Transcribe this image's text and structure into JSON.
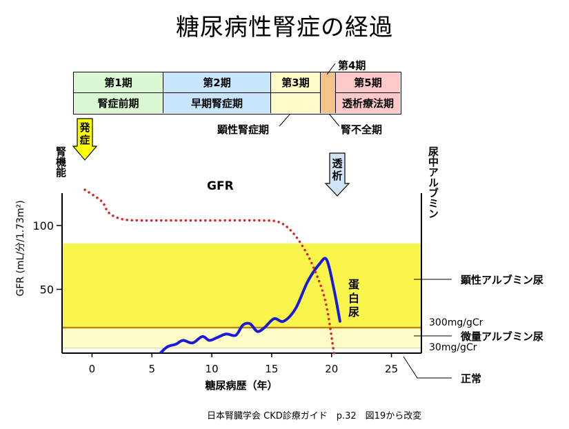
{
  "title": "糖尿病性腎症の経過",
  "stages": {
    "row1": [
      "第1期",
      "第2期",
      "第3期",
      "",
      "第5期"
    ],
    "row2": [
      "腎症前期",
      "早期腎症期",
      "",
      "",
      "透析療法期"
    ],
    "callout_stage4": "第4期",
    "callout_stage3_name": "顕性腎症期",
    "callout_stage4_name": "腎不全期",
    "colors": [
      "#d9f7d0",
      "#c8e6fb",
      "#fffbc8",
      "#f7c28a",
      "#ffc9c9"
    ]
  },
  "markers": {
    "onset": "発症",
    "dialysis": "透析"
  },
  "axis_labels": {
    "left_top": "腎機能",
    "left_gfr": "GFR (mL/分/1.73m²)",
    "right_top": "尿中アルブミン",
    "x_axis": "糖尿病歴（年）"
  },
  "curve_labels": {
    "gfr": "GFR",
    "protein": "蛋白尿"
  },
  "right_annotations": {
    "overt": "顕性アルブミン尿",
    "t300": "300mg/gCr",
    "micro": "微量アルブミン尿",
    "t30": "30mg/gCr",
    "normal": "正常"
  },
  "source": "日本腎臓学会 CKD診療ガイド　p.32　図19から改変",
  "chart_data": {
    "type": "line",
    "x_ticks": [
      0,
      5,
      10,
      15,
      20,
      25
    ],
    "y_ticks": [
      50,
      100
    ],
    "xlim": [
      -2.5,
      27.5
    ],
    "ylim": [
      0,
      120
    ],
    "bands": [
      {
        "name": "顕性アルブミン尿",
        "from": 20,
        "to": 86,
        "color": "#faf54d"
      },
      {
        "name": "微量アルブミン尿",
        "from": 4,
        "to": 20,
        "color": "#fdfbc6"
      }
    ],
    "series": [
      {
        "name": "GFR",
        "style": "dotted",
        "color": "#e02020",
        "x": [
          -0.6,
          0.8,
          1.4,
          2.5,
          4,
          6,
          10,
          14,
          15.5,
          16.5,
          17.5,
          18.5,
          19.5,
          20.2
        ],
        "y": [
          128,
          119,
          110,
          105,
          104,
          104,
          104,
          104,
          103,
          97,
          85,
          67,
          40,
          0
        ]
      },
      {
        "name": "蛋白尿",
        "style": "solid",
        "color": "#1a1ad8",
        "x": [
          5.7,
          6.3,
          7.0,
          7.6,
          8.4,
          9.2,
          9.8,
          10.4,
          11.2,
          12.0,
          12.6,
          13.2,
          13.8,
          14.4,
          15.2,
          16.0,
          17.0,
          18.0,
          19.0,
          19.6,
          20.2,
          20.7
        ],
        "y": [
          0,
          5,
          7,
          10,
          8,
          13,
          10,
          12,
          15,
          14,
          22,
          23,
          17,
          20,
          27,
          25,
          35,
          56,
          70,
          73,
          50,
          25
        ]
      }
    ]
  }
}
